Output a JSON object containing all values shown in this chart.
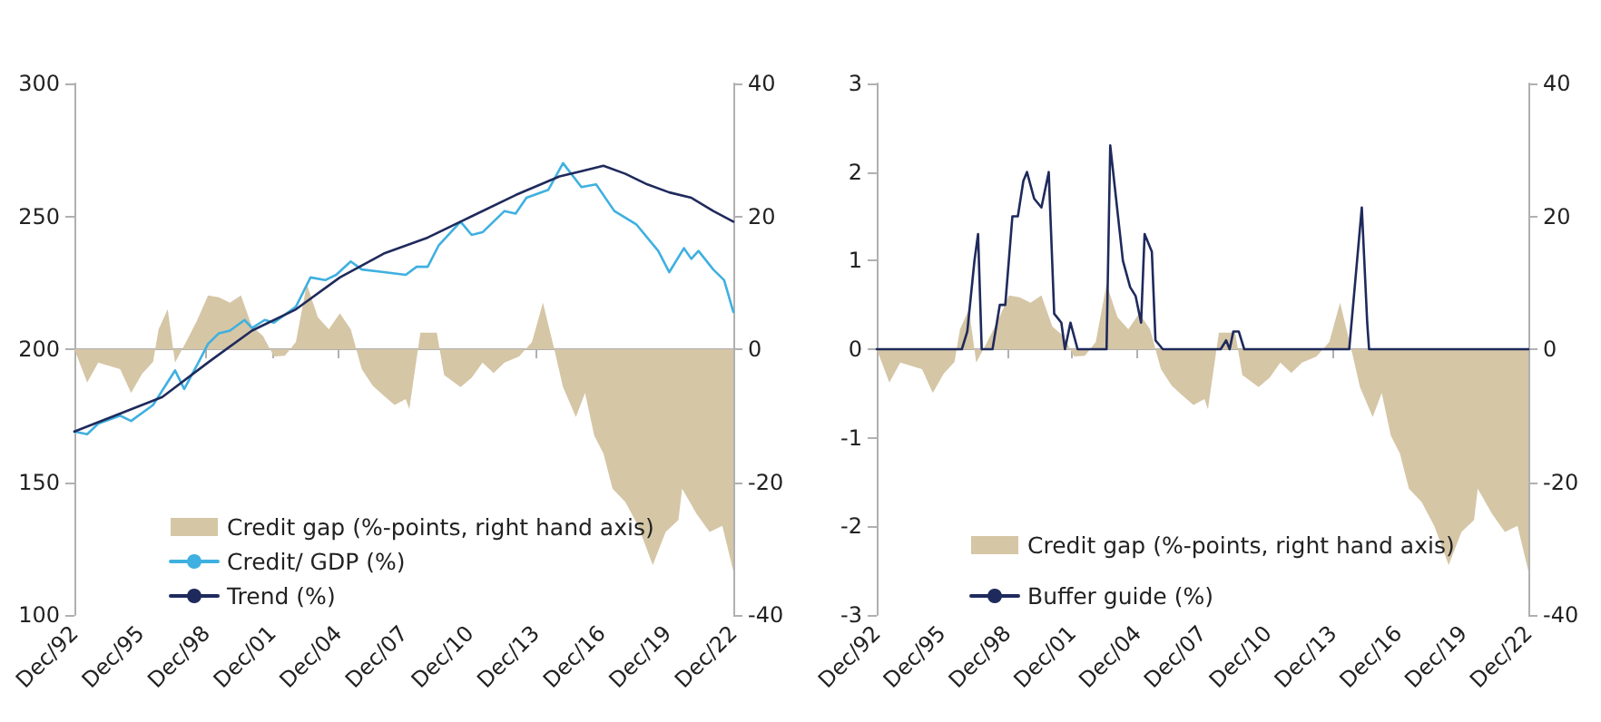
{
  "chart_data": [
    {
      "type": "line",
      "legend": "bottom",
      "xlim": [
        "1992-12",
        "2022-12"
      ],
      "xticks": [
        {
          "value": "1992-12",
          "label": "Dec/92"
        },
        {
          "value": "1995-12",
          "label": "Dec/95"
        },
        {
          "value": "1998-12",
          "label": "Dec/98"
        },
        {
          "value": "2001-12",
          "label": "Dec/01"
        },
        {
          "value": "2004-12",
          "label": "Dec/04"
        },
        {
          "value": "2007-12",
          "label": "Dec/07"
        },
        {
          "value": "2010-12",
          "label": "Dec/10"
        },
        {
          "value": "2013-12",
          "label": "Dec/13"
        },
        {
          "value": "2016-12",
          "label": "Dec/16"
        },
        {
          "value": "2019-12",
          "label": "Dec/19"
        },
        {
          "value": "2022-12",
          "label": "Dec/22"
        }
      ],
      "ylim": [
        100,
        300
      ],
      "yticks": [
        100,
        150,
        200,
        250,
        300
      ],
      "y2lim": [
        -40,
        40
      ],
      "y2ticks": [
        -40,
        -20,
        0,
        20,
        40
      ],
      "series": [
        {
          "name": "Credit gap (%-points, right hand axis)",
          "type": "area",
          "axis": "y2",
          "color": "#d5c6a6",
          "x": [
            "1992-12",
            "1993-07",
            "1994-01",
            "1995-01",
            "1995-07",
            "1996-01",
            "1996-07",
            "1996-10",
            "1997-03",
            "1997-07",
            "1998-01",
            "1998-07",
            "1999-01",
            "1999-07",
            "2000-01",
            "2000-07",
            "2001-01",
            "2001-07",
            "2002-01",
            "2002-07",
            "2003-01",
            "2003-07",
            "2004-01",
            "2004-07",
            "2005-01",
            "2005-07",
            "2006-01",
            "2006-07",
            "2007-01",
            "2007-07",
            "2008-01",
            "2008-03",
            "2008-09",
            "2009-06",
            "2009-10",
            "2010-07",
            "2011-01",
            "2011-07",
            "2012-01",
            "2012-07",
            "2013-03",
            "2013-10",
            "2014-04",
            "2014-10",
            "2015-03",
            "2015-10",
            "2016-03",
            "2016-08",
            "2017-01",
            "2017-06",
            "2018-01",
            "2018-08",
            "2019-04",
            "2019-11",
            "2020-06",
            "2020-08",
            "2021-04",
            "2021-11",
            "2022-06",
            "2022-12"
          ],
          "values": [
            0,
            -5,
            -2,
            -3,
            -6.6,
            -3.7,
            -1.9,
            3,
            6,
            -2,
            1.1,
            4.3,
            8.1,
            7.8,
            7,
            8.1,
            3.4,
            2,
            -1.1,
            -1,
            1.1,
            9.8,
            4.8,
            3,
            5.4,
            3,
            -3,
            -5.5,
            -7,
            -8.4,
            -7.5,
            -9,
            2.5,
            2.5,
            -3.9,
            -5.7,
            -4.3,
            -2,
            -3.6,
            -2,
            -1.1,
            1.1,
            7,
            0.2,
            -5.7,
            -10.2,
            -6.6,
            -13,
            -15.7,
            -21,
            -23,
            -26.6,
            -32.5,
            -27.5,
            -25.7,
            -21,
            -24.8,
            -27.5,
            -26.6,
            -33.4
          ]
        },
        {
          "name": "Credit/ GDP (%)",
          "color": "#3fb0e0",
          "x": [
            "1992-12",
            "1993-07",
            "1994-01",
            "1995-01",
            "1995-07",
            "1996-07",
            "1997-07",
            "1997-12",
            "1998-07",
            "1999-01",
            "1999-07",
            "2000-01",
            "2000-09",
            "2001-01",
            "2001-08",
            "2002-01",
            "2003-01",
            "2003-09",
            "2004-05",
            "2004-11",
            "2005-07",
            "2006-01",
            "2007-01",
            "2008-01",
            "2008-07",
            "2009-01",
            "2009-07",
            "2010-07",
            "2011-01",
            "2011-07",
            "2012-07",
            "2013-01",
            "2013-07",
            "2014-07",
            "2015-03",
            "2016-01",
            "2016-09",
            "2017-07",
            "2018-07",
            "2019-07",
            "2020-01",
            "2020-09",
            "2021-01",
            "2021-05",
            "2022-01",
            "2022-07",
            "2022-12"
          ],
          "values": [
            169,
            168,
            172,
            175,
            173,
            179,
            192,
            185,
            194,
            202,
            206,
            207,
            211,
            208,
            211,
            210,
            216,
            227,
            226,
            228,
            233,
            230,
            229,
            228,
            231,
            231,
            239,
            248,
            243,
            244,
            252,
            251,
            257,
            260,
            270,
            261,
            262,
            252,
            247,
            237,
            229,
            238,
            234,
            237,
            230,
            226,
            214
          ]
        },
        {
          "name": "Trend (%)",
          "color": "#1f2a5c",
          "x": [
            "1992-12",
            "1996-12",
            "1999-01",
            "2001-01",
            "2003-01",
            "2005-01",
            "2007-01",
            "2009-01",
            "2011-01",
            "2013-01",
            "2015-01",
            "2016-01",
            "2017-01",
            "2018-01",
            "2019-01",
            "2020-01",
            "2021-01",
            "2022-01",
            "2022-12"
          ],
          "values": [
            169,
            182,
            195,
            207,
            215,
            227,
            236,
            242,
            250,
            258,
            265,
            267,
            269,
            266,
            262,
            259,
            257,
            252,
            248
          ]
        }
      ]
    },
    {
      "type": "line",
      "legend": "bottom",
      "xlim": [
        "1992-12",
        "2022-12"
      ],
      "xticks": [
        {
          "value": "1992-12",
          "label": "Dec/92"
        },
        {
          "value": "1995-12",
          "label": "Dec/95"
        },
        {
          "value": "1998-12",
          "label": "Dec/98"
        },
        {
          "value": "2001-12",
          "label": "Dec/01"
        },
        {
          "value": "2004-12",
          "label": "Dec/04"
        },
        {
          "value": "2007-12",
          "label": "Dec/07"
        },
        {
          "value": "2010-12",
          "label": "Dec/10"
        },
        {
          "value": "2013-12",
          "label": "Dec/13"
        },
        {
          "value": "2016-12",
          "label": "Dec/16"
        },
        {
          "value": "2019-12",
          "label": "Dec/19"
        },
        {
          "value": "2022-12",
          "label": "Dec/22"
        }
      ],
      "ylim": [
        -3,
        3
      ],
      "yticks": [
        -3,
        -2,
        -1,
        0,
        1,
        2,
        3
      ],
      "y2lim": [
        -40,
        40
      ],
      "y2ticks": [
        -40,
        -20,
        0,
        20,
        40
      ],
      "series": [
        {
          "name": "Credit gap (%-points, right hand axis)",
          "type": "area",
          "axis": "y2",
          "color": "#d5c6a6",
          "x": [
            "1992-12",
            "1993-07",
            "1994-01",
            "1995-01",
            "1995-07",
            "1996-01",
            "1996-07",
            "1996-10",
            "1997-03",
            "1997-07",
            "1998-01",
            "1998-07",
            "1999-01",
            "1999-07",
            "2000-01",
            "2000-07",
            "2001-01",
            "2001-07",
            "2002-01",
            "2002-07",
            "2003-01",
            "2003-07",
            "2004-01",
            "2004-07",
            "2005-01",
            "2005-07",
            "2006-01",
            "2006-07",
            "2007-01",
            "2007-07",
            "2008-01",
            "2008-03",
            "2008-09",
            "2009-06",
            "2009-10",
            "2010-07",
            "2011-01",
            "2011-07",
            "2012-01",
            "2012-07",
            "2013-03",
            "2013-10",
            "2014-04",
            "2014-10",
            "2015-03",
            "2015-10",
            "2016-03",
            "2016-08",
            "2017-01",
            "2017-06",
            "2018-01",
            "2018-08",
            "2019-04",
            "2019-11",
            "2020-06",
            "2020-08",
            "2021-04",
            "2021-11",
            "2022-06",
            "2022-12"
          ],
          "values": [
            0,
            -5,
            -2,
            -3,
            -6.6,
            -3.7,
            -1.9,
            3,
            6,
            -2,
            1.1,
            4.3,
            8.1,
            7.8,
            7,
            8.1,
            3.4,
            2,
            -1.1,
            -1,
            1.1,
            9.8,
            4.8,
            3,
            5.4,
            3,
            -3,
            -5.5,
            -7,
            -8.4,
            -7.5,
            -9,
            2.5,
            2.5,
            -3.9,
            -5.7,
            -4.3,
            -2,
            -3.6,
            -2,
            -1.1,
            1.1,
            7,
            0.2,
            -5.7,
            -10.2,
            -6.6,
            -13,
            -15.7,
            -21,
            -23,
            -26.6,
            -32.5,
            -27.5,
            -25.7,
            -21,
            -24.8,
            -27.5,
            -26.6,
            -33.4
          ]
        },
        {
          "name": "Buffer guide (%)",
          "color": "#1f2a5c",
          "x": [
            "1992-12",
            "1996-11",
            "1997-02",
            "1997-06",
            "1997-08",
            "1997-10",
            "1998-04",
            "1998-08",
            "1998-11",
            "1999-03",
            "1999-06",
            "1999-09",
            "1999-11",
            "2000-03",
            "2000-07",
            "2000-11",
            "2001-02",
            "2001-06",
            "2001-08",
            "2001-11",
            "2002-03",
            "2003-07",
            "2003-09",
            "2004-04",
            "2004-08",
            "2004-11",
            "2005-02",
            "2005-04",
            "2005-08",
            "2005-10",
            "2006-02",
            "2008-10",
            "2009-01",
            "2009-03",
            "2009-05",
            "2009-08",
            "2009-11",
            "2014-09",
            "2015-04",
            "2015-07",
            "2015-08",
            "2022-12"
          ],
          "values": [
            0,
            0,
            0.2,
            1,
            1.3,
            0,
            0,
            0.5,
            0.5,
            1.5,
            1.5,
            1.9,
            2,
            1.7,
            1.6,
            2,
            0.4,
            0.3,
            0,
            0.3,
            0,
            0,
            2.3,
            1,
            0.7,
            0.6,
            0.3,
            1.3,
            1.1,
            0.1,
            0,
            0,
            0.1,
            0,
            0.2,
            0.2,
            0,
            0,
            1.6,
            0.3,
            0,
            0
          ]
        }
      ]
    }
  ]
}
